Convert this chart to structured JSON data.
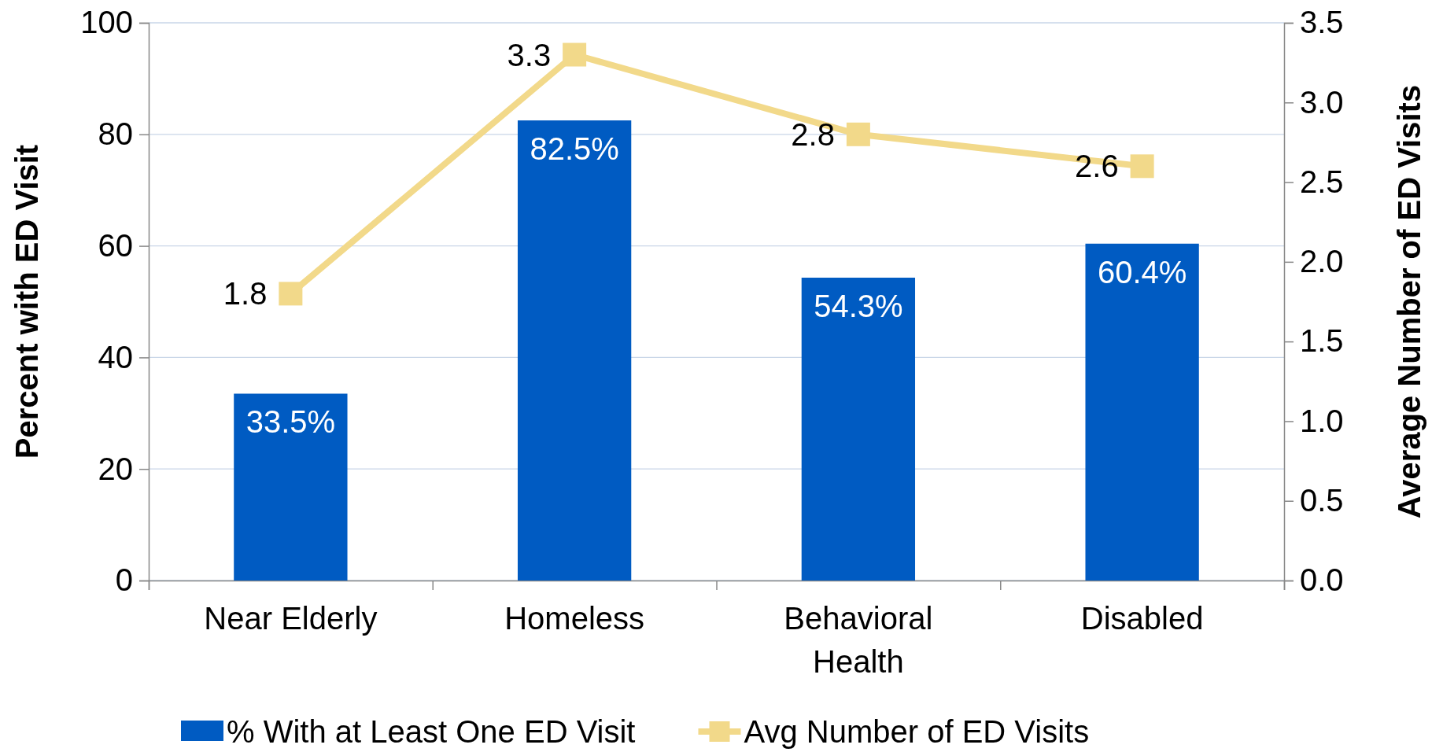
{
  "chart_data": {
    "type": "bar",
    "categories": [
      "Near Elderly",
      "Homeless",
      "Behavioral Health",
      "Disabled"
    ],
    "ylabel": "Percent with ED Visit",
    "y2label": "Average Number of ED Visits",
    "ylim": [
      0,
      100
    ],
    "yticks": [
      0,
      20,
      40,
      60,
      80,
      100
    ],
    "y2lim": [
      0,
      3.5
    ],
    "y2ticks": [
      "0.0",
      "0.5",
      "1.0",
      "1.5",
      "2.0",
      "2.5",
      "3.0",
      "3.5"
    ],
    "grid": "y",
    "legend": "bottom",
    "series": [
      {
        "name": "% With at Least One ED Visit",
        "color": "#005bc2",
        "values": [
          33.5,
          82.5,
          54.3,
          60.4
        ],
        "value_labels": [
          "33.5%",
          "82.5%",
          "54.3%",
          "60.4%"
        ]
      },
      {
        "name": "Avg Number of ED Visits",
        "type": "line",
        "axis": "y2",
        "color": "#f2d98a",
        "marker": "square",
        "values": [
          1.8,
          3.3,
          2.8,
          2.6
        ],
        "value_labels": [
          "1.8",
          "3.3",
          "2.8",
          "2.6"
        ]
      }
    ]
  }
}
